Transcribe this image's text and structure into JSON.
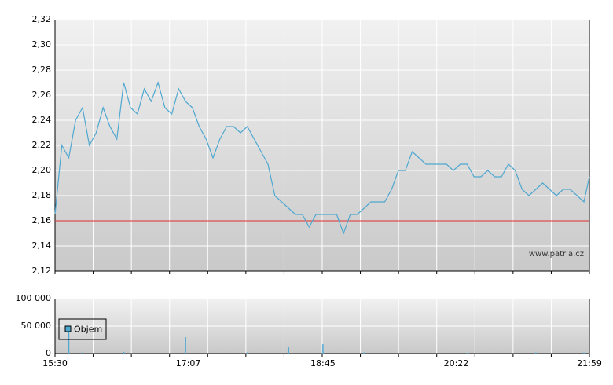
{
  "chart_data": [
    {
      "type": "line",
      "categories": [
        "15:30",
        "15:35",
        "15:40",
        "15:45",
        "15:50",
        "15:55",
        "16:00",
        "16:05",
        "16:10",
        "16:15",
        "16:20",
        "16:25",
        "16:30",
        "16:35",
        "16:40",
        "16:45",
        "16:50",
        "16:55",
        "17:00",
        "17:05",
        "17:10",
        "17:15",
        "17:20",
        "17:25",
        "17:30",
        "17:35",
        "17:40",
        "17:45",
        "17:50",
        "17:55",
        "18:00",
        "18:05",
        "18:10",
        "18:15",
        "18:20",
        "18:25",
        "18:30",
        "18:35",
        "18:40",
        "18:45",
        "18:50",
        "18:55",
        "19:00",
        "19:05",
        "19:10",
        "19:15",
        "19:20",
        "19:25",
        "19:30",
        "19:35",
        "19:40",
        "19:45",
        "19:50",
        "19:55",
        "20:00",
        "20:05",
        "20:10",
        "20:15",
        "20:20",
        "20:25",
        "20:30",
        "20:35",
        "20:40",
        "20:45",
        "20:50",
        "20:55",
        "21:00",
        "21:05",
        "21:10",
        "21:15",
        "21:20",
        "21:25",
        "21:30",
        "21:35",
        "21:40",
        "21:45",
        "21:50",
        "21:55",
        "21:59"
      ],
      "values": [
        2.165,
        2.22,
        2.21,
        2.24,
        2.25,
        2.22,
        2.23,
        2.25,
        2.235,
        2.225,
        2.27,
        2.25,
        2.245,
        2.265,
        2.255,
        2.27,
        2.25,
        2.245,
        2.265,
        2.255,
        2.25,
        2.235,
        2.225,
        2.21,
        2.225,
        2.235,
        2.235,
        2.23,
        2.235,
        2.225,
        2.215,
        2.205,
        2.18,
        2.175,
        2.17,
        2.165,
        2.165,
        2.155,
        2.165,
        2.165,
        2.165,
        2.165,
        2.15,
        2.165,
        2.165,
        2.17,
        2.175,
        2.175,
        2.175,
        2.185,
        2.2,
        2.2,
        2.215,
        2.21,
        2.205,
        2.205,
        2.205,
        2.205,
        2.2,
        2.205,
        2.205,
        2.195,
        2.195,
        2.2,
        2.195,
        2.195,
        2.205,
        2.2,
        2.185,
        2.18,
        2.185,
        2.19,
        2.185,
        2.18,
        2.185,
        2.185,
        2.18,
        2.175,
        2.195
      ],
      "color": "#4fa8d0",
      "ylim": [
        2.12,
        2.32
      ],
      "yticks": [
        {
          "value": 2.12,
          "label": "2,12"
        },
        {
          "value": 2.14,
          "label": "2,14"
        },
        {
          "value": 2.16,
          "label": "2,16"
        },
        {
          "value": 2.18,
          "label": "2,18"
        },
        {
          "value": 2.2,
          "label": "2,20"
        },
        {
          "value": 2.22,
          "label": "2,22"
        },
        {
          "value": 2.24,
          "label": "2,24"
        },
        {
          "value": 2.26,
          "label": "2,26"
        },
        {
          "value": 2.28,
          "label": "2,28"
        },
        {
          "value": 2.3,
          "label": "2,30"
        },
        {
          "value": 2.32,
          "label": "2,32"
        }
      ],
      "reference_line": {
        "value": 2.16,
        "color": "#e03030"
      },
      "grid": true,
      "annotation": "www.patria.cz"
    },
    {
      "type": "bar",
      "series": [
        {
          "name": "Objem",
          "color": "#4fa8d0",
          "values": [
            0,
            0,
            40000,
            0,
            2000,
            0,
            0,
            0,
            0,
            0,
            3000,
            0,
            0,
            0,
            0,
            0,
            0,
            0,
            0,
            30000,
            0,
            0,
            0,
            0,
            0,
            0,
            0,
            0,
            2000,
            0,
            0,
            0,
            0,
            0,
            12000,
            0,
            0,
            0,
            0,
            17000,
            0,
            0,
            0,
            0,
            0,
            2000,
            0,
            0,
            0,
            0,
            0,
            0,
            0,
            0,
            0,
            0,
            0,
            0,
            0,
            0,
            1500,
            0,
            0,
            0,
            0,
            0,
            0,
            0,
            0,
            0,
            2000,
            0,
            0,
            0,
            0,
            0,
            0,
            2000,
            0
          ]
        }
      ],
      "ylim": [
        0,
        100000
      ],
      "yticks": [
        0,
        {
          "value": 50000,
          "label": "50 000"
        },
        {
          "value": 100000,
          "label": "100 000"
        }
      ],
      "xticks": [
        "15:30",
        "17:07",
        "18:45",
        "20:22",
        "21:59"
      ],
      "legend": "upper left",
      "grid": true
    }
  ]
}
